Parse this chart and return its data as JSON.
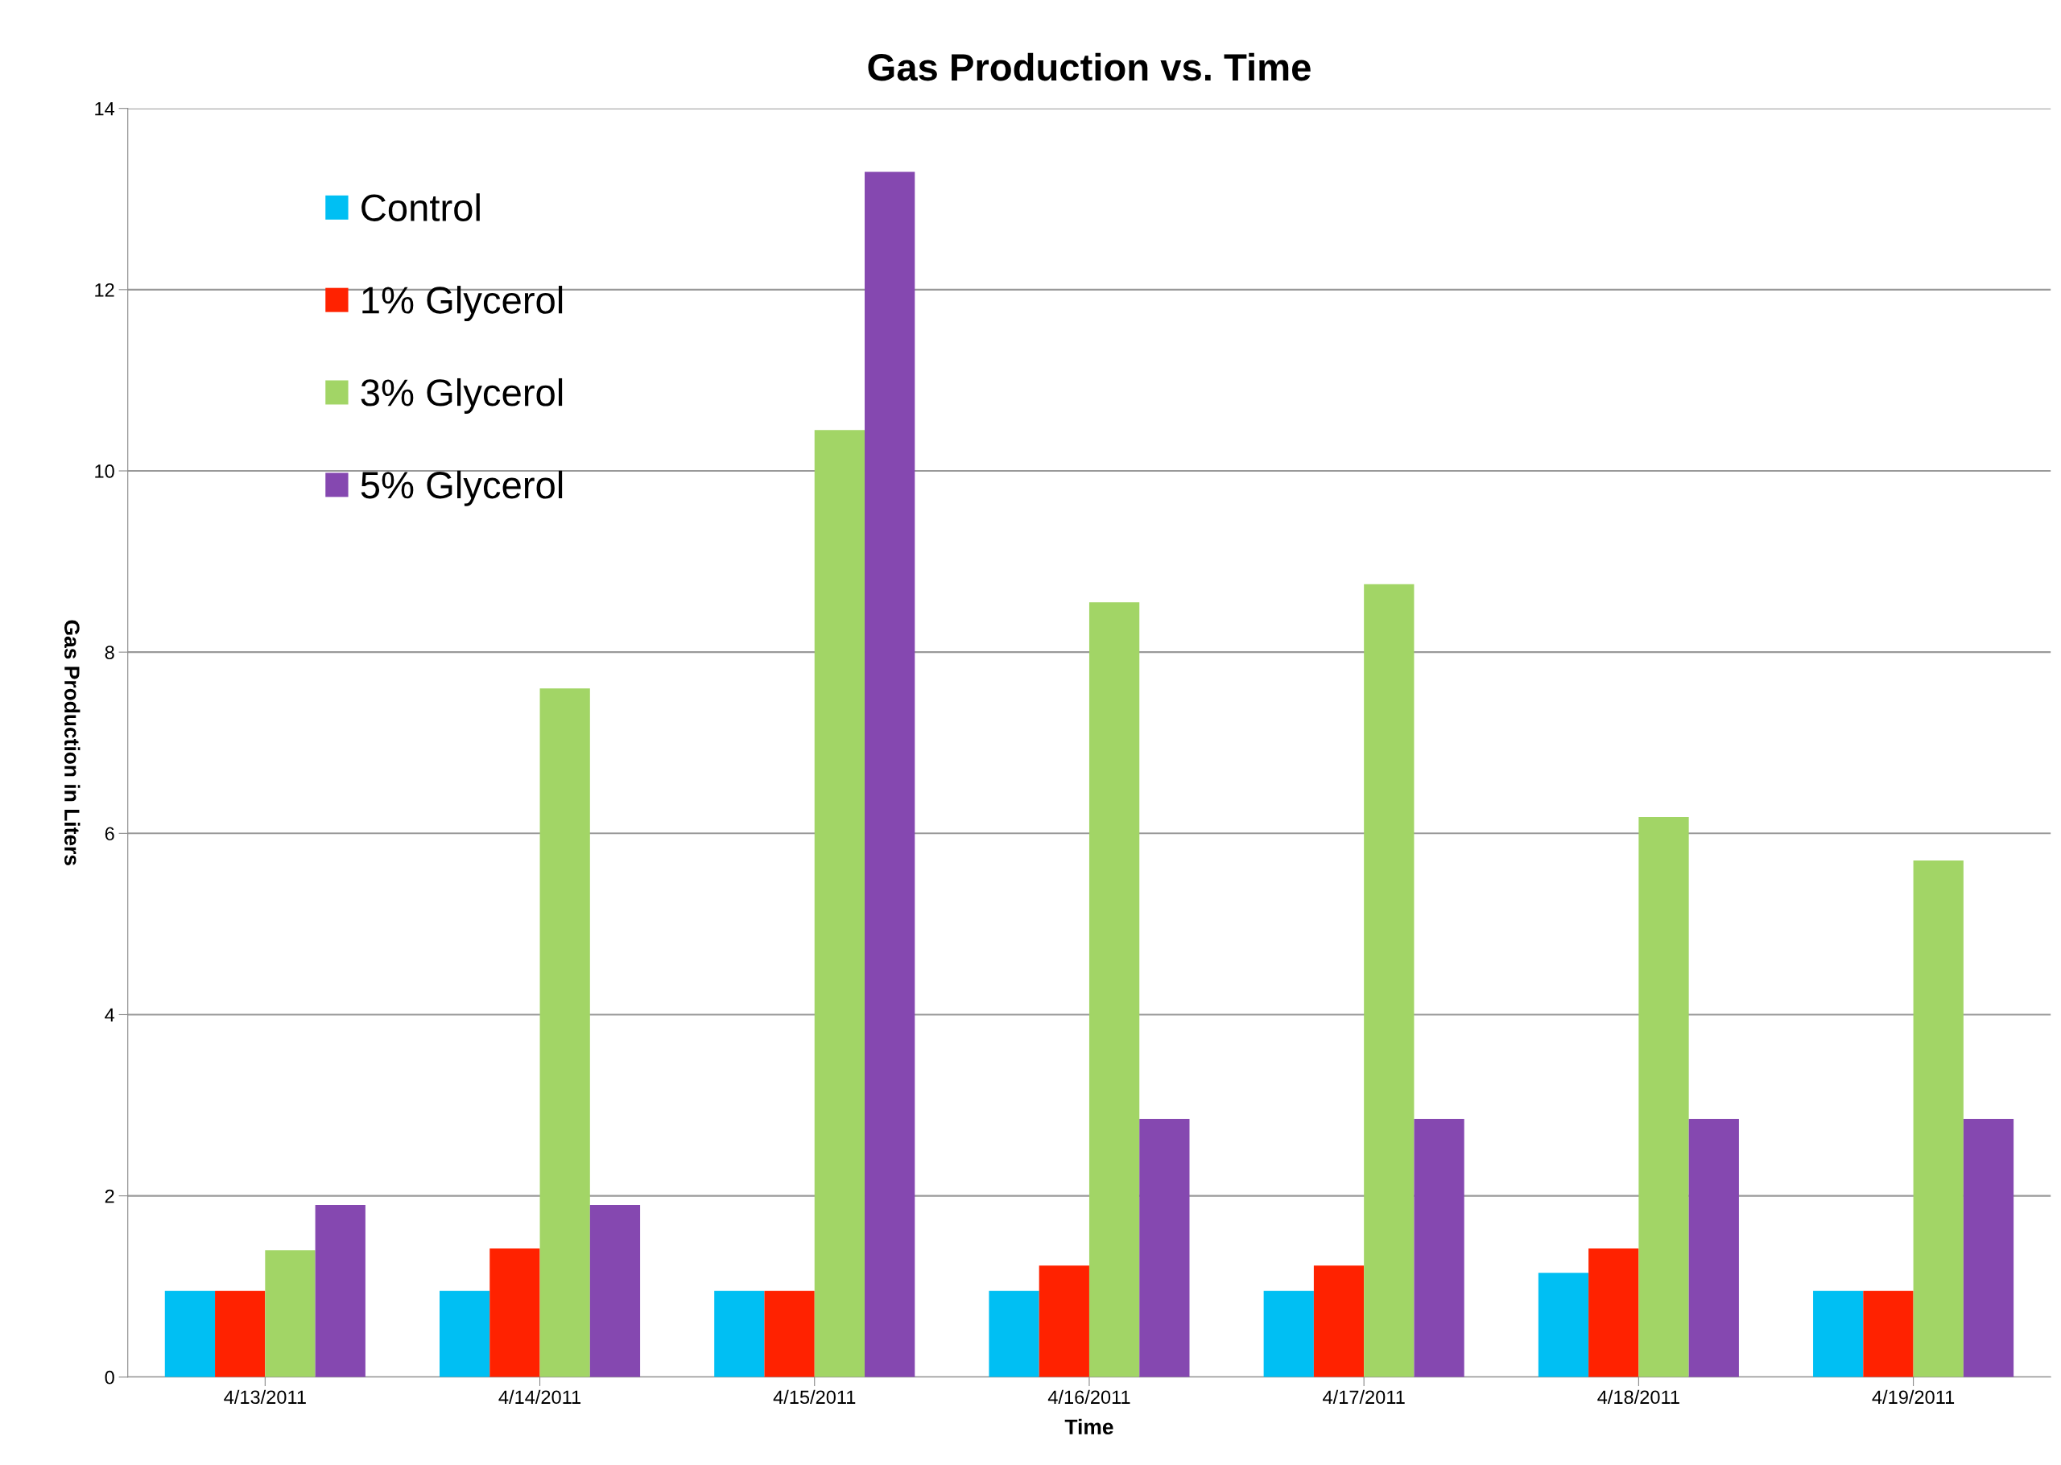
{
  "chart_data": {
    "type": "bar",
    "title": "Gas Production vs. Time",
    "xlabel": "Time",
    "ylabel": "Gas Production in Liters",
    "categories": [
      "4/13/2011",
      "4/14/2011",
      "4/15/2011",
      "4/16/2011",
      "4/17/2011",
      "4/18/2011",
      "4/19/2011"
    ],
    "series": [
      {
        "name": "Control",
        "color": "#00bff3",
        "values": [
          0.95,
          0.95,
          0.95,
          0.95,
          0.95,
          1.15,
          0.95
        ]
      },
      {
        "name": "1% Glycerol",
        "color": "#ff2200",
        "values": [
          0.95,
          1.42,
          0.95,
          1.23,
          1.23,
          1.42,
          0.95
        ]
      },
      {
        "name": "3% Glycerol",
        "color": "#a2d566",
        "values": [
          1.4,
          7.6,
          10.45,
          8.55,
          8.75,
          6.18,
          5.7
        ]
      },
      {
        "name": "5% Glycerol",
        "color": "#8548b0",
        "values": [
          1.9,
          1.9,
          13.3,
          2.85,
          2.85,
          2.85,
          2.85
        ]
      }
    ],
    "ylim": [
      0,
      14
    ],
    "yticks": [
      0,
      2,
      4,
      6,
      8,
      10,
      12,
      14
    ],
    "grid": "y",
    "legend": "top left"
  }
}
